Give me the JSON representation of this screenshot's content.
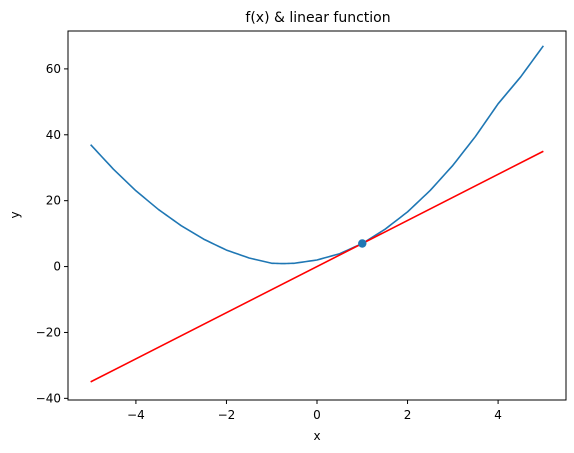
{
  "chart_data": {
    "type": "line",
    "title": "f(x) & linear function",
    "xlabel": "x",
    "ylabel": "y",
    "xlim": [
      -5.5,
      5.5
    ],
    "ylim": [
      -40.5,
      71.5
    ],
    "xticks": [
      -4,
      -2,
      0,
      2,
      4
    ],
    "yticks": [
      -40,
      -20,
      0,
      20,
      40,
      60
    ],
    "xtick_labels": [
      "−4",
      "−2",
      "0",
      "2",
      "4"
    ],
    "ytick_labels": [
      "−40",
      "−20",
      "0",
      "20",
      "40",
      "60"
    ],
    "grid": false,
    "series": [
      {
        "kind": "curve",
        "color": "#1f77b4",
        "x": [
          -5,
          -4.5,
          -4,
          -3.5,
          -3,
          -2.5,
          -2,
          -1.5,
          -1,
          -0.75,
          -0.5,
          0,
          0.5,
          1,
          1.5,
          2,
          2.5,
          3,
          3.5,
          4,
          4.5,
          5
        ],
        "y": [
          37,
          29.6,
          23,
          17.3,
          12.4,
          8.3,
          5,
          2.6,
          1,
          0.9,
          1,
          2,
          3.9,
          7,
          11.3,
          16.6,
          23.1,
          30.7,
          39.5,
          49.4,
          57.6,
          67
        ]
      },
      {
        "kind": "line",
        "color": "#ff0000",
        "x": [
          -5,
          5
        ],
        "y": [
          -35,
          35
        ]
      }
    ],
    "points": [
      {
        "x": 1,
        "y": 7,
        "color": "#1f77b4"
      }
    ]
  }
}
